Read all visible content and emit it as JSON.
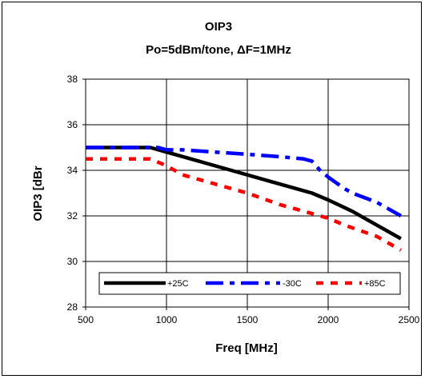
{
  "chart_data": {
    "type": "line",
    "title": "OIP3",
    "subtitle": "Po=5dBm/tone, ΔF=1MHz",
    "xlabel": "Freq [MHz]",
    "ylabel": "OIP3 [dBr",
    "xlim": [
      500,
      2500
    ],
    "ylim": [
      28,
      38
    ],
    "xticks": [
      500,
      1000,
      1500,
      2000,
      2500
    ],
    "yticks": [
      28,
      30,
      32,
      34,
      36,
      38
    ],
    "grid": true,
    "legend_position": "bottom",
    "series": [
      {
        "name": "+25C",
        "color": "#000000",
        "x": [
          500,
          700,
          900,
          1000,
          1200,
          1400,
          1600,
          1800,
          1900,
          2000,
          2150,
          2300,
          2450
        ],
        "y": [
          35.0,
          35.0,
          35.0,
          34.8,
          34.4,
          34.0,
          33.6,
          33.2,
          33.0,
          32.7,
          32.2,
          31.6,
          31.0
        ]
      },
      {
        "name": "-30C",
        "color": "#0000ff",
        "x": [
          500,
          700,
          900,
          950,
          1000,
          1100,
          1300,
          1500,
          1700,
          1850,
          1900,
          1950,
          2000,
          2100,
          2150,
          2300,
          2450
        ],
        "y": [
          35.0,
          35.0,
          35.0,
          35.0,
          34.9,
          34.9,
          34.8,
          34.7,
          34.6,
          34.5,
          34.4,
          34.0,
          33.7,
          33.2,
          33.0,
          32.6,
          32.0
        ]
      },
      {
        "name": "+85C",
        "color": "#ff0000",
        "x": [
          500,
          700,
          900,
          1000,
          1100,
          1300,
          1500,
          1700,
          1900,
          2000,
          2100,
          2300,
          2450
        ],
        "y": [
          34.5,
          34.5,
          34.5,
          34.2,
          33.8,
          33.4,
          33.0,
          32.5,
          32.1,
          31.9,
          31.6,
          31.1,
          30.5
        ]
      }
    ]
  }
}
